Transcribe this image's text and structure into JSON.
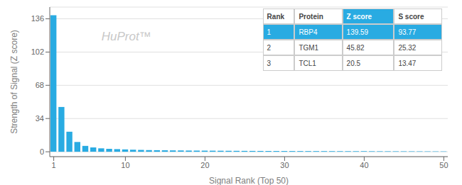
{
  "chart_data": {
    "type": "bar",
    "xlabel": "Signal Rank (Top 50)",
    "ylabel": "Strength of Signal (Z score)",
    "x": [
      1,
      2,
      3,
      4,
      5,
      6,
      7,
      8,
      9,
      10,
      11,
      12,
      13,
      14,
      15,
      16,
      17,
      18,
      19,
      20,
      21,
      22,
      23,
      24,
      25,
      26,
      27,
      28,
      29,
      30,
      31,
      32,
      33,
      34,
      35,
      36,
      37,
      38,
      39,
      40,
      41,
      42,
      43,
      44,
      45,
      46,
      47,
      48,
      49,
      50
    ],
    "values": [
      139.59,
      45.82,
      20.5,
      10.0,
      6.0,
      4.5,
      3.5,
      3.0,
      2.7,
      2.4,
      2.1,
      1.9,
      1.7,
      1.6,
      1.5,
      1.4,
      1.3,
      1.25,
      1.2,
      1.15,
      1.1,
      1.05,
      1.0,
      0.95,
      0.9,
      0.87,
      0.84,
      0.81,
      0.78,
      0.75,
      0.73,
      0.71,
      0.69,
      0.67,
      0.65,
      0.63,
      0.61,
      0.59,
      0.57,
      0.55,
      0.53,
      0.51,
      0.5,
      0.48,
      0.46,
      0.44,
      0.42,
      0.4,
      0.38,
      0.36
    ],
    "color": "#29ABE2",
    "xlim": [
      0.5,
      50.5
    ],
    "ylim": [
      -5,
      148
    ],
    "xticks": [
      1,
      10,
      20,
      30,
      40,
      50
    ],
    "yticks": [
      0,
      34,
      68,
      102,
      136
    ],
    "grid": true,
    "annotations": [
      {
        "text": "HuProt™"
      }
    ],
    "table": {
      "headers": [
        "Rank",
        "Protein",
        "Z score",
        "S score"
      ],
      "rows": [
        [
          "1",
          "RBP4",
          "139.59",
          "93.77"
        ],
        [
          "2",
          "TGM1",
          "45.82",
          "25.32"
        ],
        [
          "3",
          "TCL1",
          "20.5",
          "13.47"
        ]
      ]
    }
  }
}
